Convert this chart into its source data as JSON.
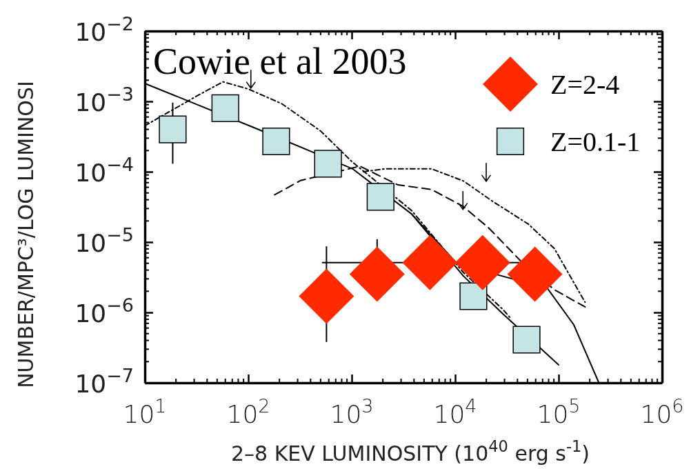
{
  "chart_data": {
    "type": "scatter",
    "xlabel": "2–8 KEV LUMINOSITY (10$^{40}$ erg s$^{-1}$)",
    "ylabel": "NUMBER/MPC³/LOG LUMINOSI",
    "annotations": [
      "Cowie et al 2003"
    ],
    "log": "xy",
    "xlim": [
      10,
      1000000
    ],
    "xticks": [
      {
        "value": 10,
        "label": "10$^{1}$"
      },
      {
        "value": 100,
        "label": "10$^{2}$"
      },
      {
        "value": 1000,
        "label": "10$^{3}$"
      },
      {
        "value": 10000,
        "label": "10$^{4}$"
      },
      {
        "value": 100000,
        "label": "10$^{5}$"
      },
      {
        "value": 1000000,
        "label": "10$^{6}$"
      }
    ],
    "ylim": [
      1e-07,
      0.01
    ],
    "yticks": [
      {
        "value": 1e-07,
        "label": "10$^{−7}$"
      },
      {
        "value": 1e-06,
        "label": "10$^{−6}$"
      },
      {
        "value": 1e-05,
        "label": "10$^{−5}$"
      },
      {
        "value": 0.0001,
        "label": "10$^{−4}$"
      },
      {
        "value": 0.001,
        "label": "10$^{−3}$"
      },
      {
        "value": 0.01,
        "label": "10$^{−2}$"
      }
    ],
    "legend": "top right",
    "grid": false,
    "series": [
      {
        "type": "line",
        "line_style": "solid",
        "color": "#000000",
        "x": [
          10,
          120,
          1020,
          3800,
          12000,
          29000,
          100000
        ],
        "values": [
          0.0018,
          0.00041,
          0.00011,
          2.5e-05,
          3.3e-06,
          9.5e-07,
          1.8e-07
        ]
      },
      {
        "type": "line",
        "line_style": "solid",
        "color": "#000000",
        "x": [
          3800,
          10500,
          78000,
          140000,
          245000
        ],
        "values": [
          2.5e-05,
          4.9e-06,
          2.2e-06,
          6.7e-07,
          1e-07
        ]
      },
      {
        "type": "line",
        "line_style": "dotted",
        "color": "#000000",
        "x": [
          10,
          32,
          57,
          100,
          210,
          500,
          1000,
          3800,
          12000,
          29000,
          35000
        ],
        "values": [
          0.00045,
          0.0012,
          0.0019,
          0.0015,
          0.00093,
          0.00038,
          0.00014,
          2.8e-05,
          3.7e-06,
          1.1e-06,
          8e-07
        ]
      },
      {
        "type": "line",
        "line_style": "dashed",
        "color": "#000000",
        "x": [
          180,
          320,
          1200,
          2800,
          5900,
          12000,
          21000,
          44000,
          91000,
          180000
        ],
        "values": [
          4.7e-05,
          7.5e-05,
          0.00012,
          6.5e-05,
          5.6e-05,
          3.2e-05,
          1.6e-05,
          5.2e-06,
          2.1e-06,
          1.2e-06
        ]
      },
      {
        "type": "line",
        "line_style": "dotted",
        "color": "#000000",
        "x": [
          1300,
          2100,
          5900,
          12000,
          23000,
          51000,
          91000,
          180000
        ],
        "values": [
          0.0001,
          0.00011,
          0.00011,
          7.4e-05,
          3.8e-05,
          1.8e-05,
          8.1e-06,
          1.4e-06
        ]
      },
      {
        "name": "Z=0.1-1",
        "marker": "square",
        "color": "#c5e4e6",
        "x": [
          18.6,
          60,
          186,
          590,
          1900,
          15000,
          49000
        ],
        "values": [
          0.0004,
          0.0008,
          0.00027,
          0.00013,
          4.4e-05,
          1.7e-06,
          4.1e-07
        ],
        "errors": [
          [
            0.00013,
            0.00096
          ],
          null,
          null,
          null,
          null,
          null,
          null
        ]
      },
      {
        "name": "Z=2-4",
        "marker": "diamond",
        "color": "#ff2a00",
        "x": [
          570,
          1760,
          5700,
          18400,
          59000
        ],
        "values": [
          1.7e-06,
          3.5e-06,
          5.1e-06,
          5.1e-06,
          3.5e-06
        ],
        "errors": [
          [
            3.8e-07,
            8.7e-06
          ],
          [
            3.5e-06,
            1.1e-05
          ],
          null,
          null,
          null
        ],
        "xerrors": [
          null,
          null,
          [
            515,
            41700
          ],
          null,
          null
        ]
      }
    ]
  }
}
